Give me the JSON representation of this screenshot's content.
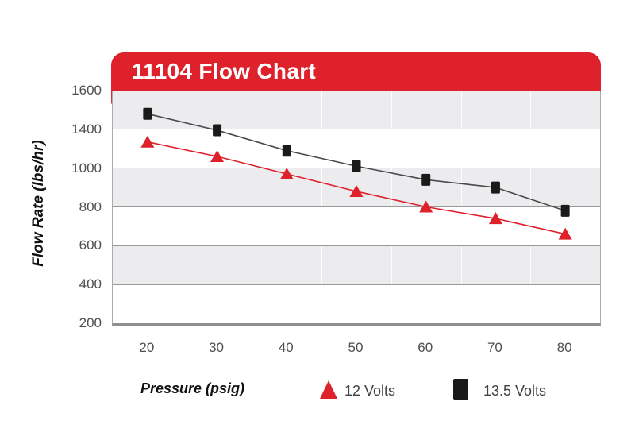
{
  "banner": {
    "title": "11104 Flow Chart",
    "background": "#de212b",
    "text_color": "#ffffff"
  },
  "colors": {
    "band_gray": "#ececee",
    "band_white": "#ffffff",
    "hgrid": "#999999",
    "tick_text": "#4f4f4f",
    "axis_title_text": "#111111",
    "legend_text": "#414141"
  },
  "chart_data": {
    "type": "line",
    "title": "11104 Flow Chart",
    "xlabel": "Pressure (psig)",
    "ylabel": "Flow Rate (lbs/hr)",
    "categories": [
      20,
      30,
      40,
      50,
      60,
      70,
      80
    ],
    "x_tick_labels": [
      "20",
      "30",
      "40",
      "50",
      "60",
      "70",
      "80"
    ],
    "y_tick_labels": [
      "1600",
      "1400",
      "1000",
      "800",
      "600",
      "400",
      "200"
    ],
    "grid": "horizontal gridlines with alternating gray/white bands; faint vertical lines between categories",
    "legend_position": "bottom",
    "series": [
      {
        "name": "12 Volts",
        "marker": "triangle",
        "color": "#de212b",
        "line_color": "#de212b",
        "values": [
          1270,
          1120,
          970,
          880,
          800,
          740,
          660
        ]
      },
      {
        "name": "13.5 Volts",
        "marker": "square",
        "color": "#1a1a1a",
        "line_color": "#4a4a4a",
        "values": [
          1480,
          1390,
          1180,
          1020,
          940,
          900,
          780
        ]
      }
    ]
  }
}
